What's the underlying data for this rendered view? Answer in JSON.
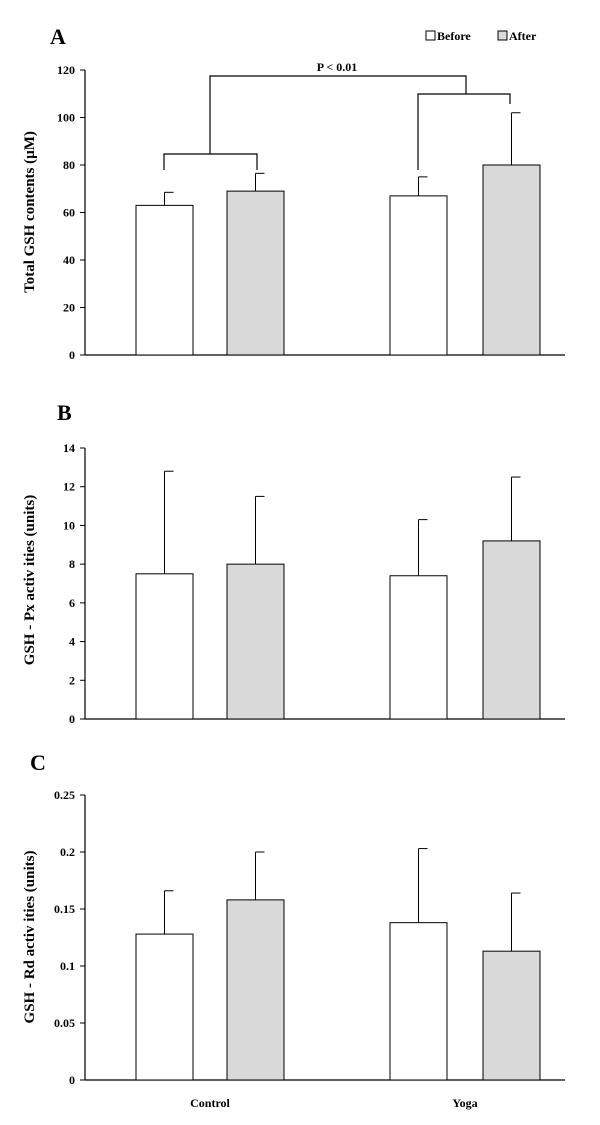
{
  "legend": {
    "before": "Before",
    "after": "After"
  },
  "colors": {
    "before": "#ffffff",
    "after": "#d9d9d9",
    "stroke": "#000000"
  },
  "chart_data": [
    {
      "type": "bar",
      "panel": "A",
      "categories": [
        "Control",
        "Yoga"
      ],
      "series": [
        {
          "name": "Before",
          "values": [
            63,
            67
          ],
          "errors": [
            5.5,
            8
          ]
        },
        {
          "name": "After",
          "values": [
            69,
            80
          ],
          "errors": [
            7.5,
            22
          ]
        }
      ],
      "ylabel": "Total GSH contents (µM)",
      "ylim": [
        0,
        120
      ],
      "yticks": [
        "0",
        "20",
        "40",
        "60",
        "80",
        "100",
        "120"
      ],
      "annotation": "P < 0.01"
    },
    {
      "type": "bar",
      "panel": "B",
      "categories": [
        "Control",
        "Yoga"
      ],
      "series": [
        {
          "name": "Before",
          "values": [
            7.5,
            7.4
          ],
          "errors": [
            5.3,
            2.9
          ]
        },
        {
          "name": "After",
          "values": [
            8.0,
            9.2
          ],
          "errors": [
            3.5,
            3.3
          ]
        }
      ],
      "ylabel": "GSH - Px activ ities (units)",
      "ylim": [
        0,
        14
      ],
      "yticks": [
        "0",
        "2",
        "4",
        "6",
        "8",
        "10",
        "12",
        "14"
      ]
    },
    {
      "type": "bar",
      "panel": "C",
      "categories": [
        "Control",
        "Yoga"
      ],
      "series": [
        {
          "name": "Before",
          "values": [
            0.128,
            0.138
          ],
          "errors": [
            0.038,
            0.065
          ]
        },
        {
          "name": "After",
          "values": [
            0.158,
            0.113
          ],
          "errors": [
            0.042,
            0.051
          ]
        }
      ],
      "ylabel": "GSH - Rd activ ities (units)",
      "ylim": [
        0,
        0.25
      ],
      "yticks": [
        "0",
        "0.05",
        "0.1",
        "0.15",
        "0.2",
        "0.25"
      ]
    }
  ]
}
